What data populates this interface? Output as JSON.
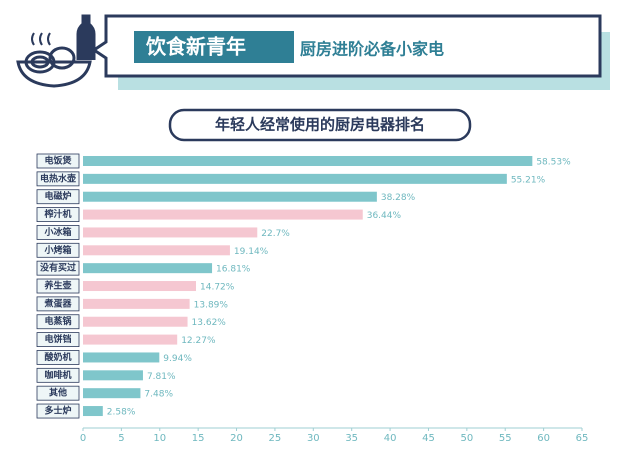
{
  "banner": {
    "title": "饮食新青年",
    "subtitle": "厨房进阶必备小家电"
  },
  "chart_data": {
    "type": "hbar",
    "title": "年轻人经常使用的厨房电器排名",
    "categories": [
      "电饭煲",
      "电热水壶",
      "电磁炉",
      "榨汁机",
      "小冰箱",
      "小烤箱",
      "没有买过",
      "养生壶",
      "煮蛋器",
      "电蒸锅",
      "电饼铛",
      "酸奶机",
      "咖啡机",
      "其他",
      "多士炉"
    ],
    "values": [
      58.53,
      55.21,
      38.28,
      36.44,
      22.7,
      19.14,
      16.81,
      14.72,
      13.89,
      13.62,
      12.27,
      9.94,
      7.81,
      7.48,
      2.58
    ],
    "value_labels": [
      "58.53%",
      "55.21%",
      "38.28%",
      "36.44%",
      "22.7%",
      "19.14%",
      "16.81%",
      "14.72%",
      "13.89%",
      "13.62%",
      "12.27%",
      "9.94%",
      "7.81%",
      "7.48%",
      "2.58%"
    ],
    "colors": [
      "#7fc6cb",
      "#7fc6cb",
      "#7fc6cb",
      "#f5c7d1",
      "#f5c7d1",
      "#f5c7d1",
      "#7fc6cb",
      "#f5c7d1",
      "#f5c7d1",
      "#f5c7d1",
      "#f5c7d1",
      "#7fc6cb",
      "#7fc6cb",
      "#7fc6cb",
      "#7fc6cb"
    ],
    "xlim": [
      0,
      65
    ],
    "xticks": [
      0,
      5,
      10,
      15,
      20,
      25,
      30,
      35,
      40,
      45,
      50,
      55,
      60,
      65
    ],
    "grid": false
  }
}
